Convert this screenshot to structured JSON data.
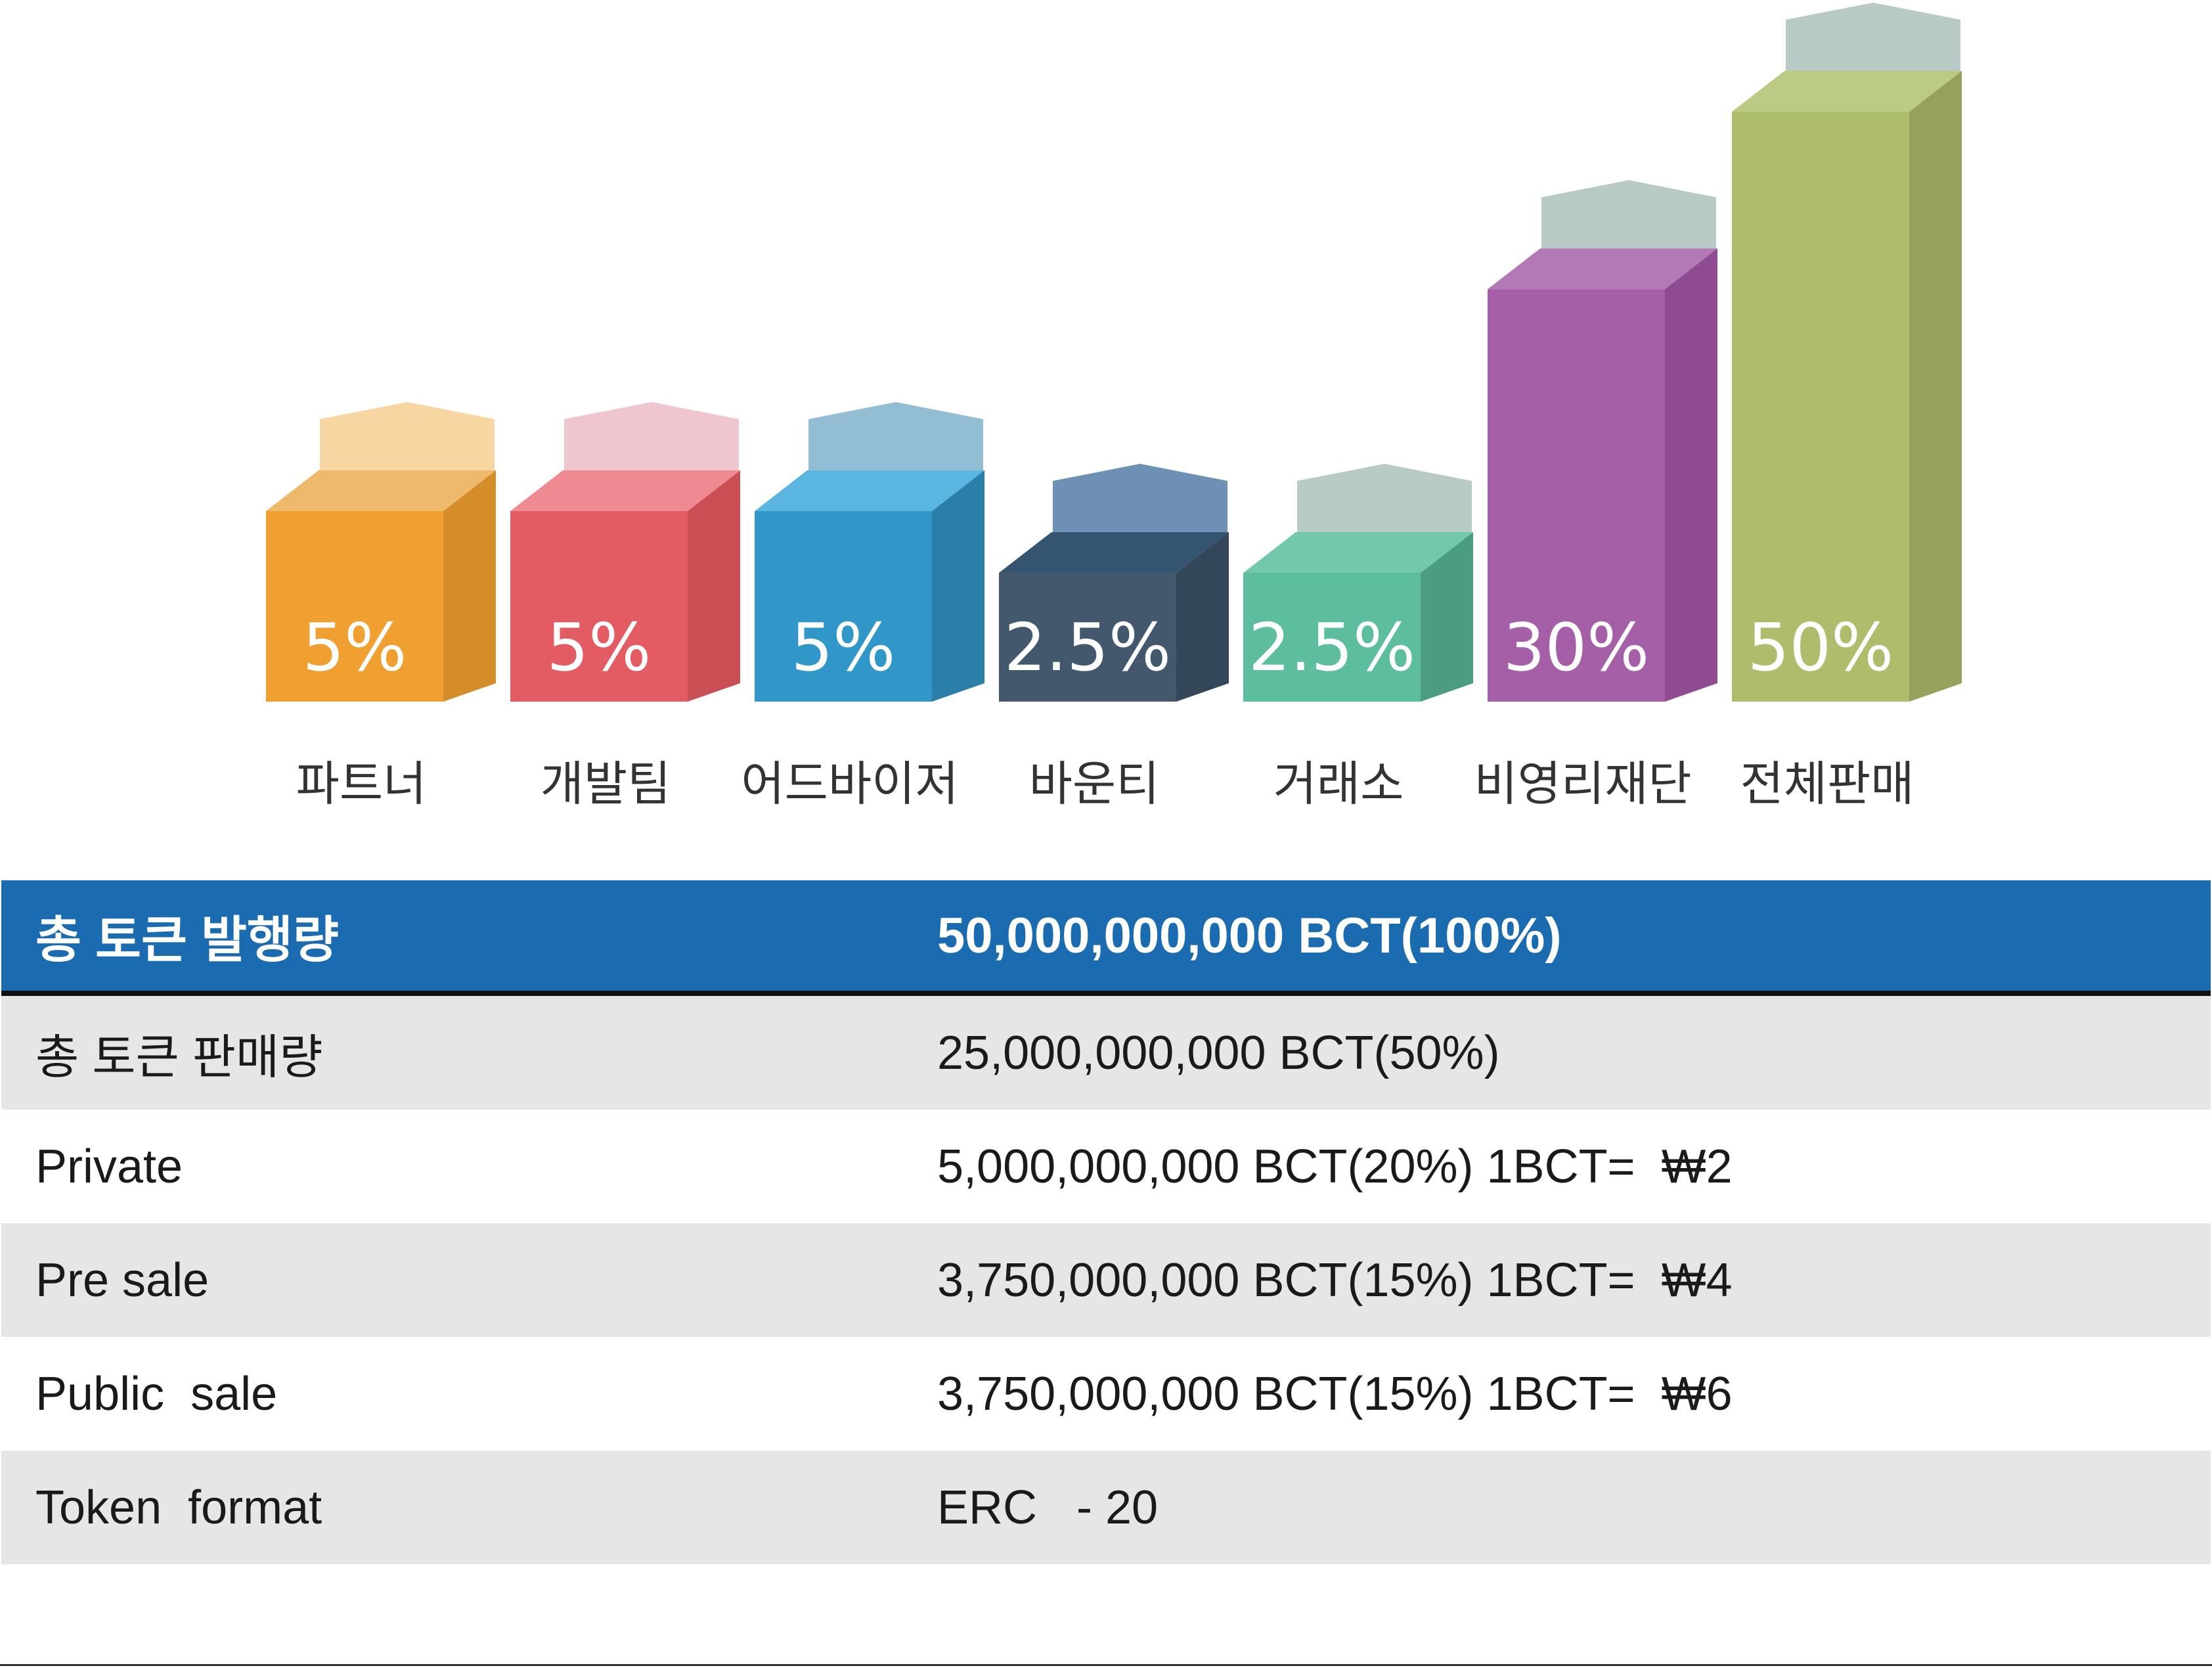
{
  "chart_data": {
    "type": "bar",
    "categories": [
      "파트너",
      "개발팀",
      "어드바이저",
      "바운티",
      "거래소",
      "비영리재단",
      "전체판매"
    ],
    "values": [
      5,
      5,
      5,
      2.5,
      2.5,
      30,
      50
    ],
    "value_labels": [
      "5%",
      "5%",
      "5%",
      "2.5%",
      "2.5%",
      "30%",
      "50%"
    ],
    "title": "",
    "xlabel": "",
    "ylabel": "",
    "colors": {
      "front": [
        "#f0a030",
        "#e35b63",
        "#3197c8",
        "#43586d",
        "#5dbd9f",
        "#a45fa6",
        "#adbd6c"
      ],
      "side": [
        "#d48d28",
        "#c94f55",
        "#2a7fa9",
        "#34465a",
        "#4a9c83",
        "#8e4b92",
        "#96a25b"
      ],
      "top": [
        "#eeb96a",
        "#ee8a91",
        "#5ab5e1",
        "#345470",
        "#71c8ac",
        "#b279b6",
        "#bccb84"
      ],
      "cap": [
        "#f8d6a2",
        "#efc6cd",
        "#93bdd3",
        "#6d90b4",
        "#b8cac6",
        "#b8cac6",
        "#b8cac6"
      ]
    }
  },
  "table": {
    "header": {
      "label": "총 토큰 발행량",
      "value": "50,000,000,000 BCT(100%)"
    },
    "rows": [
      {
        "label": "총 토큰 판매량",
        "value": "25,000,000,000 BCT(50%)"
      },
      {
        "label": "Private",
        "value": "5,000,000,000 BCT(20%) 1BCT=  ₩2"
      },
      {
        "label": "Pre sale",
        "value": "3,750,000,000 BCT(15%) 1BCT=  ₩4"
      },
      {
        "label": "Public  sale",
        "value": "3,750,000,000 BCT(15%) 1BCT=  ₩6"
      },
      {
        "label": "Token  format",
        "value": "ERC   - 20"
      }
    ]
  }
}
